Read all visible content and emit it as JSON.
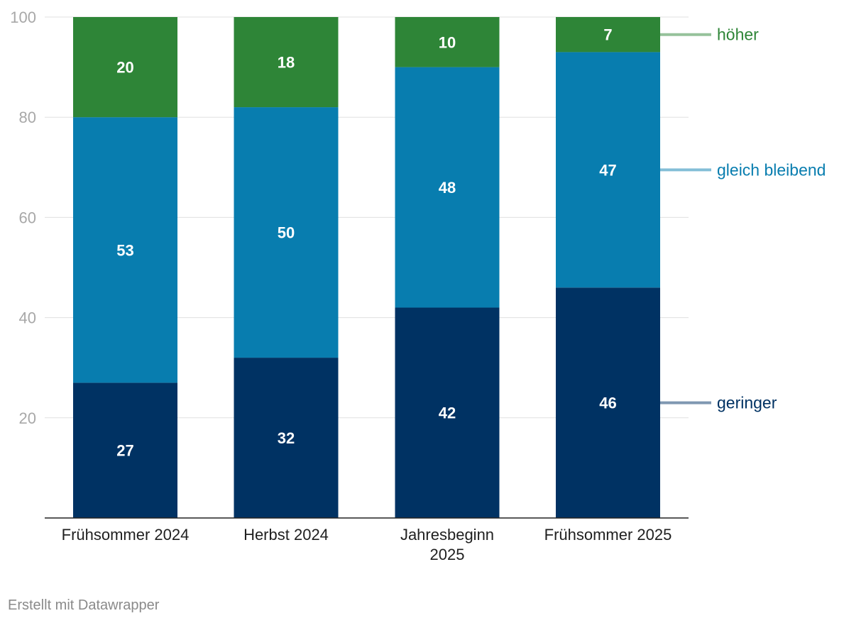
{
  "chart_data": {
    "type": "bar",
    "stacked": true,
    "categories": [
      "Frühsommer 2024",
      "Herbst 2024",
      "Jahresbeginn 2025",
      "Frühsommer 2025"
    ],
    "category_lines": [
      [
        "Frühsommer 2024"
      ],
      [
        "Herbst 2024"
      ],
      [
        "Jahresbeginn",
        "2025"
      ],
      [
        "Frühsommer 2025"
      ]
    ],
    "series": [
      {
        "name": "geringer",
        "values": [
          27,
          32,
          42,
          46
        ],
        "color": "#003263"
      },
      {
        "name": "gleich bleibend",
        "values": [
          53,
          50,
          48,
          47
        ],
        "color": "#087daf"
      },
      {
        "name": "höher",
        "values": [
          20,
          18,
          10,
          7
        ],
        "color": "#2e8537"
      }
    ],
    "legend_colors": {
      "geringer": {
        "text": "#003263",
        "line": "#7f98b1"
      },
      "gleich bleibend": {
        "text": "#087daf",
        "line": "#83bed7"
      },
      "höher": {
        "text": "#2e8537",
        "line": "#96c29b"
      }
    },
    "yticks": [
      20,
      40,
      60,
      80,
      100
    ],
    "ylim": [
      0,
      100
    ],
    "grid": true,
    "legend": "right"
  },
  "footer": "Erstellt mit Datawrapper"
}
